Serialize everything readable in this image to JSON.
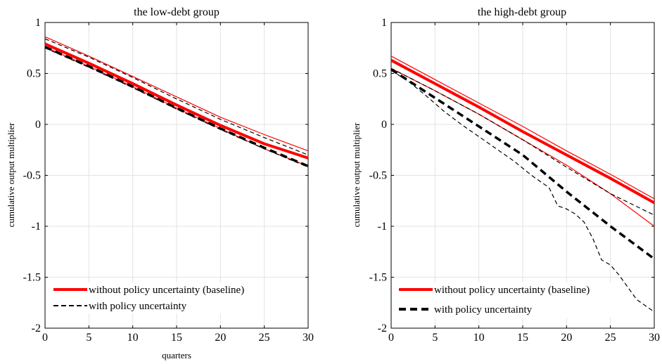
{
  "chart_data": [
    {
      "type": "line",
      "title": "the low-debt group",
      "xlabel": "quarters",
      "ylabel": "cumulative output multiplier",
      "xlim": [
        0,
        30
      ],
      "ylim": [
        -2,
        1
      ],
      "xticks": [
        0,
        5,
        10,
        15,
        20,
        25,
        30
      ],
      "xtick_labels": [
        "0",
        "5",
        "10",
        "15",
        "20",
        "25",
        "30"
      ],
      "yticks": [
        -2,
        -1.5,
        -1,
        -0.5,
        0,
        0.5,
        1
      ],
      "ytick_labels": [
        "-2",
        "-1.5",
        "-1",
        "-0.5",
        "0",
        "0.5",
        "1"
      ],
      "grid": true,
      "legend_position": "bottom-left",
      "legend": [
        {
          "label": "without policy uncertainty (baseline)",
          "color": "#ff0000",
          "style": "solid"
        },
        {
          "label": "with policy uncertainty",
          "color": "#000000",
          "style": "dashed"
        }
      ],
      "series": [
        {
          "name": "without policy uncertainty (baseline)",
          "role": "estimate",
          "color": "#ff0000",
          "style": "solid",
          "x": [
            0,
            5,
            10,
            15,
            20,
            25,
            30
          ],
          "y": [
            0.79,
            0.6,
            0.4,
            0.19,
            -0.01,
            -0.19,
            -0.33
          ]
        },
        {
          "role": "upper band",
          "color": "#ff0000",
          "style": "solid-thin",
          "x": [
            0,
            5,
            10,
            15,
            20,
            25,
            30
          ],
          "y": [
            0.86,
            0.67,
            0.47,
            0.27,
            0.07,
            -0.1,
            -0.26
          ]
        },
        {
          "role": "lower band",
          "color": "#ff0000",
          "style": "solid-thin",
          "x": [
            0,
            5,
            10,
            15,
            20,
            25,
            30
          ],
          "y": [
            0.76,
            0.57,
            0.37,
            0.16,
            -0.04,
            -0.24,
            -0.41
          ]
        },
        {
          "name": "with policy uncertainty",
          "role": "estimate",
          "color": "#000000",
          "style": "dashed",
          "x": [
            0,
            5,
            10,
            15,
            20,
            25,
            30
          ],
          "y": [
            0.76,
            0.57,
            0.37,
            0.16,
            -0.04,
            -0.23,
            -0.41
          ]
        },
        {
          "role": "upper band",
          "color": "#000000",
          "style": "dashed-thin",
          "x": [
            0,
            5,
            10,
            15,
            20,
            25,
            30
          ],
          "y": [
            0.84,
            0.66,
            0.46,
            0.25,
            0.05,
            -0.13,
            -0.3
          ]
        },
        {
          "role": "lower band",
          "color": "#000000",
          "style": "dashed-thin",
          "x": [
            0,
            5,
            10,
            15,
            20,
            25,
            30
          ],
          "y": [
            0.75,
            0.56,
            0.36,
            0.15,
            -0.05,
            -0.24,
            -0.42
          ]
        }
      ]
    },
    {
      "type": "line",
      "title": "the high-debt group",
      "xlabel": "",
      "ylabel": "cumulative output multiplier",
      "xlim": [
        0,
        30
      ],
      "ylim": [
        -2,
        1
      ],
      "xticks": [
        0,
        5,
        10,
        15,
        20,
        25,
        30
      ],
      "xtick_labels": [
        "0",
        "5",
        "10",
        "15",
        "20",
        "25",
        "30"
      ],
      "yticks": [
        -2,
        -1.5,
        -1,
        -0.5,
        0,
        0.5,
        1
      ],
      "ytick_labels": [
        "-2",
        "-1.5",
        "-1",
        "-0.5",
        "0",
        "0.5",
        "1"
      ],
      "grid": true,
      "legend_position": "bottom-left",
      "legend": [
        {
          "label": "without policy uncertainty (baseline)",
          "color": "#ff0000",
          "style": "solid"
        },
        {
          "label": "with policy uncertainty",
          "color": "#000000",
          "style": "dashed"
        }
      ],
      "series": [
        {
          "name": "without policy uncertainty (baseline)",
          "role": "estimate",
          "color": "#ff0000",
          "style": "solid",
          "x": [
            0,
            5,
            10,
            15,
            20,
            25,
            30
          ],
          "y": [
            0.63,
            0.4,
            0.17,
            -0.07,
            -0.3,
            -0.53,
            -0.77
          ]
        },
        {
          "role": "upper band",
          "color": "#ff0000",
          "style": "solid-thin",
          "x": [
            0,
            5,
            10,
            15,
            20,
            25,
            30
          ],
          "y": [
            0.67,
            0.44,
            0.21,
            -0.02,
            -0.26,
            -0.49,
            -0.73
          ]
        },
        {
          "role": "lower band",
          "color": "#ff0000",
          "style": "solid-thin",
          "x": [
            0,
            5,
            10,
            15,
            20,
            25,
            30
          ],
          "y": [
            0.55,
            0.33,
            0.1,
            -0.15,
            -0.4,
            -0.68,
            -1.0
          ]
        },
        {
          "name": "with policy uncertainty",
          "role": "estimate",
          "color": "#000000",
          "style": "dashed",
          "x": [
            0,
            5,
            10,
            15,
            20,
            25,
            30
          ],
          "y": [
            0.54,
            0.26,
            -0.02,
            -0.3,
            -0.66,
            -1.0,
            -1.32
          ]
        },
        {
          "role": "upper band",
          "color": "#000000",
          "style": "dashed-thin",
          "x": [
            0,
            5,
            10,
            15,
            20,
            25,
            30
          ],
          "y": [
            0.55,
            0.33,
            0.1,
            -0.15,
            -0.42,
            -0.68,
            -0.89
          ]
        },
        {
          "role": "lower band",
          "color": "#000000",
          "style": "dashed-thin",
          "x": [
            0,
            2,
            4,
            6,
            8,
            10,
            12,
            14,
            16,
            17,
            18,
            19,
            20,
            21,
            22,
            23,
            24,
            25,
            26,
            27,
            28,
            29,
            30
          ],
          "y": [
            0.53,
            0.42,
            0.28,
            0.13,
            0.0,
            -0.12,
            -0.24,
            -0.36,
            -0.5,
            -0.56,
            -0.62,
            -0.8,
            -0.83,
            -0.88,
            -0.96,
            -1.12,
            -1.33,
            -1.38,
            -1.48,
            -1.6,
            -1.72,
            -1.78,
            -1.84
          ]
        }
      ]
    }
  ]
}
